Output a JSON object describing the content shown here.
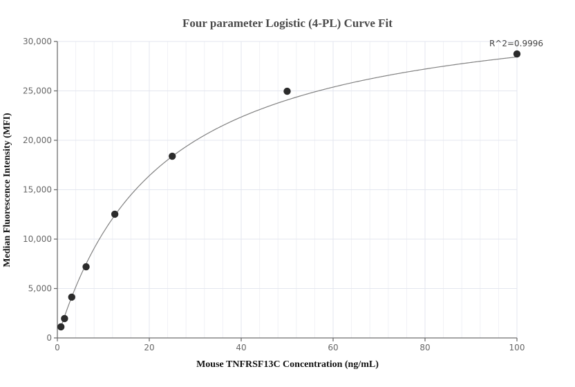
{
  "chart_data": {
    "type": "scatter",
    "title": "Four parameter Logistic (4-PL) Curve Fit",
    "xlabel": "Mouse TNFRSF13C Concentration (ng/mL)",
    "ylabel": "Median Fluorescence Intensity (MFI)",
    "xlim": [
      0,
      100
    ],
    "ylim": [
      0,
      30000
    ],
    "x_ticks": [
      0,
      20,
      40,
      60,
      80,
      100
    ],
    "x_tick_labels": [
      "0",
      "20",
      "40",
      "60",
      "80",
      "100"
    ],
    "y_ticks": [
      0,
      5000,
      10000,
      15000,
      20000,
      25000,
      30000
    ],
    "y_tick_labels": [
      "0",
      "5,000",
      "10,000",
      "15,000",
      "20,000",
      "25,000",
      "30,000"
    ],
    "grid": true,
    "legend": null,
    "series": [
      {
        "name": "Standard points",
        "type": "scatter",
        "x": [
          0.78,
          1.56,
          3.125,
          6.25,
          12.5,
          25,
          50,
          100
        ],
        "y": [
          1120,
          1960,
          4130,
          7200,
          12520,
          18390,
          24960,
          28740
        ],
        "color": "#2b2b2b"
      },
      {
        "name": "4-PL fit",
        "type": "line",
        "color": "#808080"
      }
    ],
    "annotations": [
      {
        "text": "R^2=0.9996",
        "x": 100,
        "y": 28740
      }
    ]
  },
  "chart": {
    "title": "Four parameter Logistic (4-PL) Curve Fit",
    "xlabel": "Mouse TNFRSF13C Concentration (ng/mL)",
    "ylabel": "Median Fluorescence Intensity (MFI)",
    "r2_label": "R^2=0.9996"
  }
}
